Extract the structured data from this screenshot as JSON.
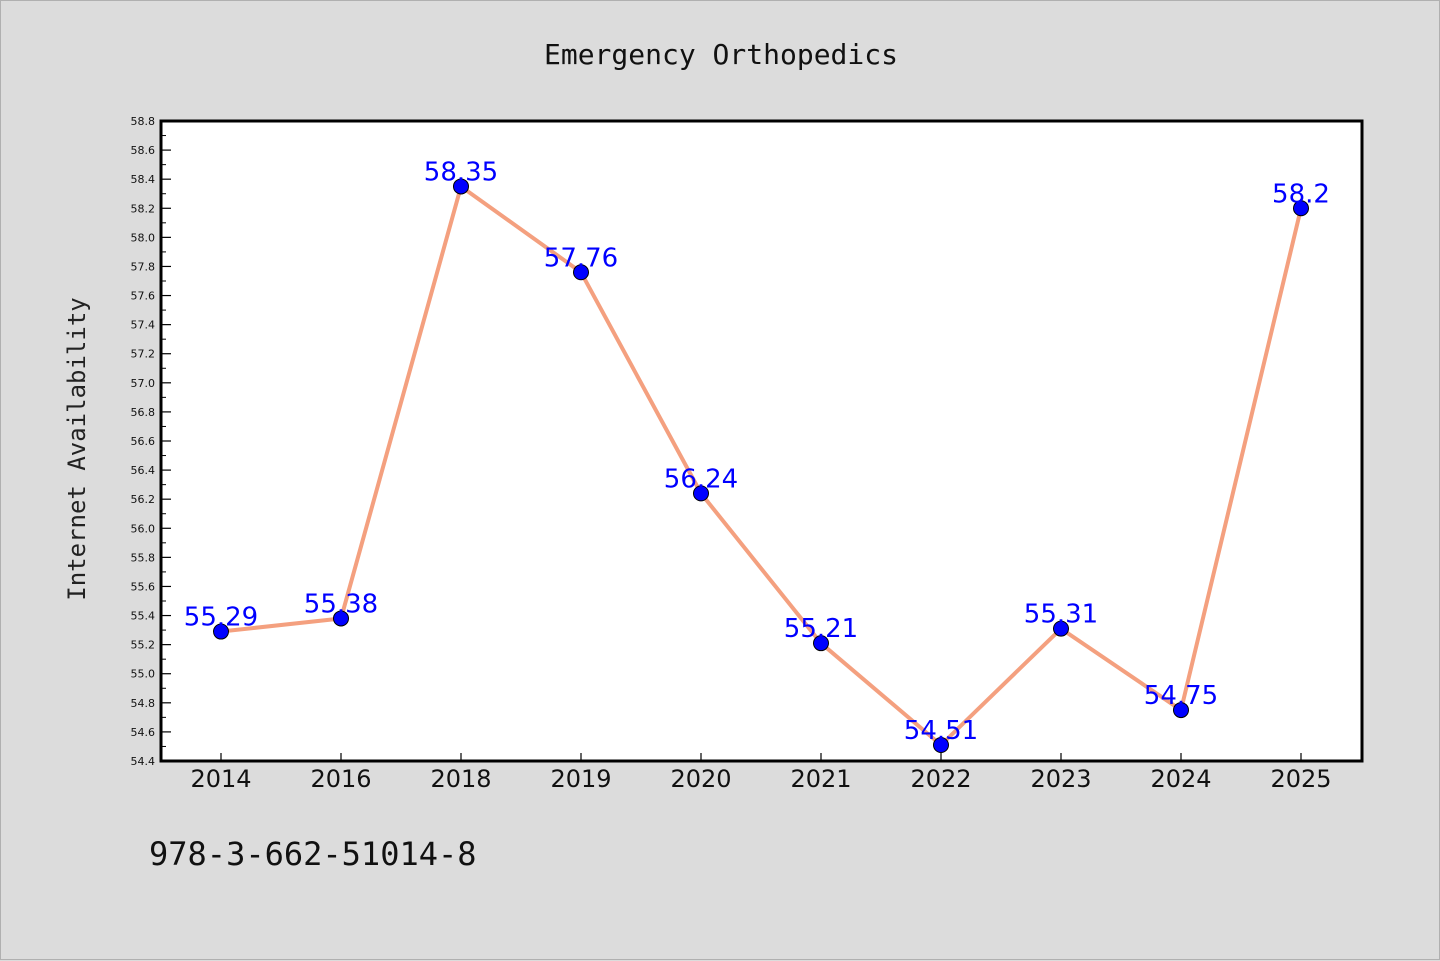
{
  "chart_data": {
    "type": "line",
    "title": "Emergency Orthopedics",
    "xlabel": "",
    "ylabel": "Internet Availability",
    "categories": [
      "2014",
      "2016",
      "2018",
      "2019",
      "2020",
      "2021",
      "2022",
      "2023",
      "2024",
      "2025"
    ],
    "series": [
      {
        "values": [
          55.29,
          55.38,
          58.35,
          57.76,
          56.24,
          55.21,
          54.51,
          55.31,
          54.75,
          58.2
        ],
        "data_labels": [
          "55.29",
          "55.38",
          "58.35",
          "57.76",
          "56.24",
          "55.21",
          "54.51",
          "55.31",
          "54.75",
          "58.2"
        ],
        "line_color": "#f4a07f",
        "marker_color": "#0000ff"
      }
    ],
    "ylim": [
      54.4,
      58.8
    ],
    "yticks": [
      "54.4",
      "54.6",
      "54.8",
      "55.0",
      "55.2",
      "55.4",
      "55.6",
      "55.8",
      "56.0",
      "56.2",
      "56.4",
      "56.6",
      "56.8",
      "57.0",
      "57.2",
      "57.4",
      "57.6",
      "57.8",
      "58.0",
      "58.2",
      "58.4",
      "58.6",
      "58.8"
    ],
    "grid": false,
    "legend": "none",
    "background_color": "#dcdcdc",
    "plot_background_color": "#ffffff",
    "label_color": "#0000ff"
  },
  "footnote": "978-3-662-51014-8"
}
